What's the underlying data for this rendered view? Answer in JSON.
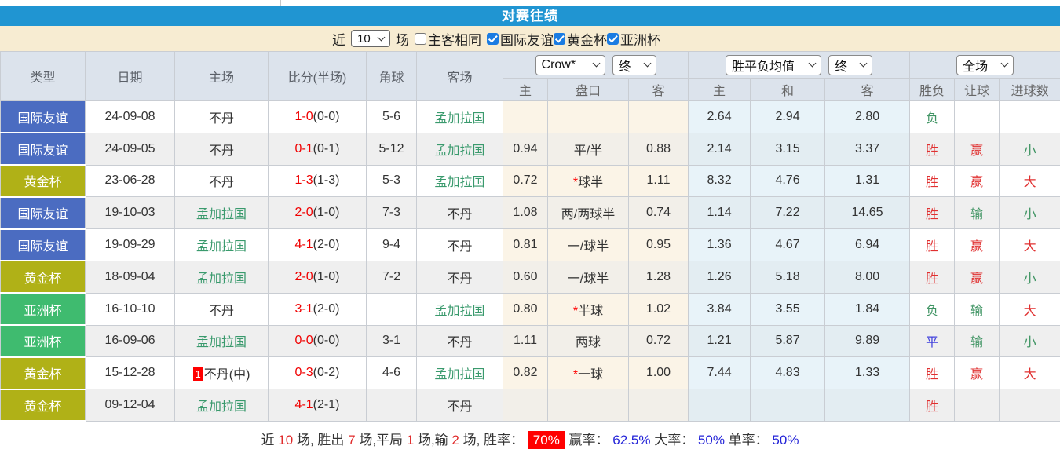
{
  "title": "对赛往绩",
  "filter": {
    "near_label": "近",
    "count_value": "10",
    "matches_label": "场",
    "same_venue": {
      "label": "主客相同",
      "checked": false
    },
    "competitions": [
      {
        "label": "国际友谊",
        "checked": true
      },
      {
        "label": "黄金杯",
        "checked": true
      },
      {
        "label": "亚洲杯",
        "checked": true
      }
    ]
  },
  "table": {
    "main_headers": [
      "类型",
      "日期",
      "主场",
      "比分(半场)",
      "角球",
      "客场"
    ],
    "selectors": {
      "odds_source": "Crow*",
      "odds_time": "终",
      "avg_type": "胜平负均值",
      "avg_time": "终",
      "scope": "全场"
    },
    "sub_headers": [
      "主",
      "盘口",
      "客",
      "主",
      "和",
      "客",
      "胜负",
      "让球",
      "进球数"
    ],
    "rows": [
      {
        "type": "国际友谊",
        "type_key": "friendly",
        "date": "24-09-08",
        "home_card": "",
        "home": "不丹",
        "home_color": "dark",
        "score": "1-0",
        "half": "(0-0)",
        "corners": "5-6",
        "away": "孟加拉国",
        "away_color": "green",
        "h_home": "",
        "handicap": "",
        "h_star": false,
        "h_away": "",
        "avg_home": "2.64",
        "avg_draw": "2.94",
        "avg_away": "2.80",
        "outcome": "负",
        "outcome_key": "green",
        "h_outcome": "",
        "h_outcome_key": "",
        "goals": "",
        "goals_key": ""
      },
      {
        "type": "国际友谊",
        "type_key": "friendly",
        "date": "24-09-05",
        "home_card": "",
        "home": "不丹",
        "home_color": "dark",
        "score": "0-1",
        "half": "(0-1)",
        "corners": "5-12",
        "away": "孟加拉国",
        "away_color": "green",
        "h_home": "0.94",
        "handicap": "平/半",
        "h_star": false,
        "h_away": "0.88",
        "avg_home": "2.14",
        "avg_draw": "3.15",
        "avg_away": "3.37",
        "outcome": "胜",
        "outcome_key": "red",
        "h_outcome": "赢",
        "h_outcome_key": "red",
        "goals": "小",
        "goals_key": "green"
      },
      {
        "type": "黄金杯",
        "type_key": "gold",
        "date": "23-06-28",
        "home_card": "",
        "home": "不丹",
        "home_color": "dark",
        "score": "1-3",
        "half": "(1-3)",
        "corners": "5-3",
        "away": "孟加拉国",
        "away_color": "green",
        "h_home": "0.72",
        "handicap": "球半",
        "h_star": true,
        "h_away": "1.11",
        "avg_home": "8.32",
        "avg_draw": "4.76",
        "avg_away": "1.31",
        "outcome": "胜",
        "outcome_key": "red",
        "h_outcome": "赢",
        "h_outcome_key": "red",
        "goals": "大",
        "goals_key": "red"
      },
      {
        "type": "国际友谊",
        "type_key": "friendly",
        "date": "19-10-03",
        "home_card": "",
        "home": "孟加拉国",
        "home_color": "green",
        "score": "2-0",
        "half": "(1-0)",
        "corners": "7-3",
        "away": "不丹",
        "away_color": "dark",
        "h_home": "1.08",
        "handicap": "两/两球半",
        "h_star": false,
        "h_away": "0.74",
        "avg_home": "1.14",
        "avg_draw": "7.22",
        "avg_away": "14.65",
        "outcome": "胜",
        "outcome_key": "red",
        "h_outcome": "输",
        "h_outcome_key": "green",
        "goals": "小",
        "goals_key": "green"
      },
      {
        "type": "国际友谊",
        "type_key": "friendly",
        "date": "19-09-29",
        "home_card": "",
        "home": "孟加拉国",
        "home_color": "green",
        "score": "4-1",
        "half": "(2-0)",
        "corners": "9-4",
        "away": "不丹",
        "away_color": "dark",
        "h_home": "0.81",
        "handicap": "一/球半",
        "h_star": false,
        "h_away": "0.95",
        "avg_home": "1.36",
        "avg_draw": "4.67",
        "avg_away": "6.94",
        "outcome": "胜",
        "outcome_key": "red",
        "h_outcome": "赢",
        "h_outcome_key": "red",
        "goals": "大",
        "goals_key": "red"
      },
      {
        "type": "黄金杯",
        "type_key": "gold",
        "date": "18-09-04",
        "home_card": "",
        "home": "孟加拉国",
        "home_color": "green",
        "score": "2-0",
        "half": "(1-0)",
        "corners": "7-2",
        "away": "不丹",
        "away_color": "dark",
        "h_home": "0.60",
        "handicap": "一/球半",
        "h_star": false,
        "h_away": "1.28",
        "avg_home": "1.26",
        "avg_draw": "5.18",
        "avg_away": "8.00",
        "outcome": "胜",
        "outcome_key": "red",
        "h_outcome": "赢",
        "h_outcome_key": "red",
        "goals": "小",
        "goals_key": "green"
      },
      {
        "type": "亚洲杯",
        "type_key": "asian",
        "date": "16-10-10",
        "home_card": "",
        "home": "不丹",
        "home_color": "dark",
        "score": "3-1",
        "half": "(2-0)",
        "corners": "",
        "away": "孟加拉国",
        "away_color": "green",
        "h_home": "0.80",
        "handicap": "半球",
        "h_star": true,
        "h_away": "1.02",
        "avg_home": "3.84",
        "avg_draw": "3.55",
        "avg_away": "1.84",
        "outcome": "负",
        "outcome_key": "green",
        "h_outcome": "输",
        "h_outcome_key": "green",
        "goals": "大",
        "goals_key": "red"
      },
      {
        "type": "亚洲杯",
        "type_key": "asian",
        "date": "16-09-06",
        "home_card": "",
        "home": "孟加拉国",
        "home_color": "green",
        "score": "0-0",
        "half": "(0-0)",
        "corners": "3-1",
        "away": "不丹",
        "away_color": "dark",
        "h_home": "1.11",
        "handicap": "两球",
        "h_star": false,
        "h_away": "0.72",
        "avg_home": "1.21",
        "avg_draw": "5.87",
        "avg_away": "9.89",
        "outcome": "平",
        "outcome_key": "blue",
        "h_outcome": "输",
        "h_outcome_key": "green",
        "goals": "小",
        "goals_key": "green"
      },
      {
        "type": "黄金杯",
        "type_key": "gold",
        "date": "15-12-28",
        "home_card": "1",
        "home": "不丹(中)",
        "home_color": "dark",
        "score": "0-3",
        "half": "(0-2)",
        "corners": "4-6",
        "away": "孟加拉国",
        "away_color": "green",
        "h_home": "0.82",
        "handicap": "一球",
        "h_star": true,
        "h_away": "1.00",
        "avg_home": "7.44",
        "avg_draw": "4.83",
        "avg_away": "1.33",
        "outcome": "胜",
        "outcome_key": "red",
        "h_outcome": "赢",
        "h_outcome_key": "red",
        "goals": "大",
        "goals_key": "red"
      },
      {
        "type": "黄金杯",
        "type_key": "gold",
        "date": "09-12-04",
        "home_card": "",
        "home": "孟加拉国",
        "home_color": "green",
        "score": "4-1",
        "half": "(2-1)",
        "corners": "",
        "away": "不丹",
        "away_color": "dark",
        "h_home": "",
        "handicap": "",
        "h_star": false,
        "h_away": "",
        "avg_home": "",
        "avg_draw": "",
        "avg_away": "",
        "outcome": "胜",
        "outcome_key": "red",
        "h_outcome": "",
        "h_outcome_key": "",
        "goals": "",
        "goals_key": ""
      }
    ]
  },
  "summary": {
    "parts": [
      {
        "text": "近 ",
        "style": "plain"
      },
      {
        "text": "10",
        "style": "red"
      },
      {
        "text": " 场, 胜出 ",
        "style": "plain"
      },
      {
        "text": "7",
        "style": "red"
      },
      {
        "text": " 场,平局 ",
        "style": "plain"
      },
      {
        "text": "1",
        "style": "red"
      },
      {
        "text": " 场,输 ",
        "style": "plain"
      },
      {
        "text": "2",
        "style": "red"
      },
      {
        "text": " 场, 胜率： ",
        "style": "plain"
      },
      {
        "text": "70%",
        "style": "red-badge"
      },
      {
        "text": " 赢率： ",
        "style": "plain"
      },
      {
        "text": "62.5%",
        "style": "blue"
      },
      {
        "text": " 大率： ",
        "style": "plain"
      },
      {
        "text": "50%",
        "style": "blue"
      },
      {
        "text": " 单率： ",
        "style": "plain"
      },
      {
        "text": "50%",
        "style": "blue"
      }
    ]
  },
  "colors": {
    "title_bar": "#2095d2",
    "filter_bar": "#f7ecd2",
    "checkbox_blue": "#1b7ce2",
    "header_bg": "#dce3ec",
    "row_alt": "#efefef",
    "type_friendly": "#4b6cc1",
    "type_gold": "#b0b117",
    "type_asian": "#3fbb6f",
    "team_green": "#3a9a6d",
    "score_red": "#f00000",
    "win_red": "#e03030",
    "lose_green": "#3f9463",
    "draw_blue": "#4040dd",
    "handicap_tint": "#fbf4e7",
    "avg_tint": "#e8f3f9",
    "stat_red": "#e02b2b",
    "link_blue": "#2424d8"
  }
}
